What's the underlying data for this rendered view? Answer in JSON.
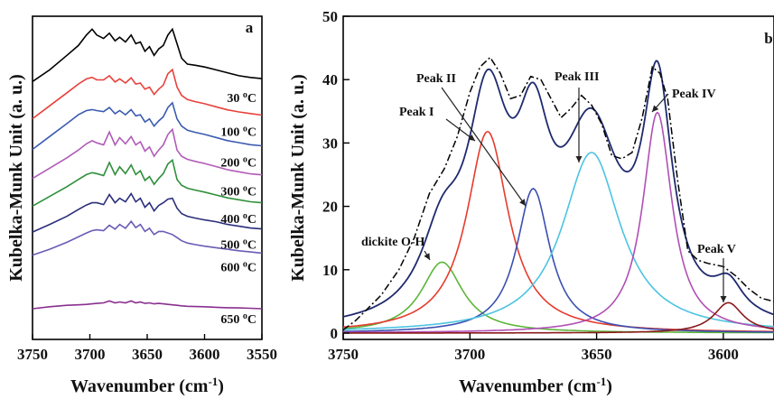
{
  "chart_data": [
    {
      "panel": "a",
      "type": "line",
      "xlabel": "Wavenumber (cm-1)",
      "xlabel_parts": {
        "base": "Wavenumber (cm",
        "sup": "-1",
        "close": ")"
      },
      "ylabel": "Kubelka-Munk Unit (a. u.)",
      "xlim": [
        3750,
        3550
      ],
      "x_ticks": [
        3750,
        3700,
        3650,
        3600,
        3550
      ],
      "y_ticks_shown": false,
      "legend": "none",
      "grid": false,
      "series": [
        {
          "name": "30 °C",
          "temp": "30",
          "unit": "C",
          "color": "#000000",
          "offset": 0.78,
          "amp": 0.18,
          "x": [
            3750,
            3735,
            3720,
            3710,
            3703,
            3698,
            3694,
            3688,
            3683,
            3678,
            3674,
            3669,
            3664,
            3660,
            3656,
            3652,
            3648,
            3644,
            3640,
            3636,
            3632,
            3628,
            3624,
            3620,
            3615,
            3608,
            3600,
            3590,
            3580,
            3570,
            3560,
            3550
          ],
          "y": [
            0.1,
            0.3,
            0.55,
            0.72,
            0.9,
            1.0,
            0.9,
            0.84,
            0.93,
            0.8,
            0.86,
            0.78,
            0.9,
            0.75,
            0.78,
            0.62,
            0.7,
            0.55,
            0.66,
            0.72,
            0.9,
            1.0,
            0.75,
            0.5,
            0.4,
            0.38,
            0.35,
            0.3,
            0.25,
            0.2,
            0.17,
            0.15
          ]
        },
        {
          "name": "100 °C",
          "temp": "100",
          "unit": "C",
          "color": "#e8413b",
          "offset": 0.675,
          "amp": 0.16,
          "x": [
            3750,
            3735,
            3720,
            3710,
            3703,
            3698,
            3694,
            3688,
            3683,
            3678,
            3674,
            3669,
            3664,
            3660,
            3656,
            3652,
            3648,
            3644,
            3640,
            3636,
            3632,
            3628,
            3624,
            3620,
            3615,
            3608,
            3600,
            3590,
            3580,
            3570,
            3560,
            3550
          ],
          "y": [
            0.05,
            0.3,
            0.55,
            0.72,
            0.82,
            0.85,
            0.8,
            0.8,
            0.88,
            0.76,
            0.82,
            0.74,
            0.84,
            0.72,
            0.74,
            0.62,
            0.66,
            0.52,
            0.62,
            0.7,
            0.92,
            1.0,
            0.66,
            0.5,
            0.42,
            0.38,
            0.34,
            0.28,
            0.22,
            0.18,
            0.15,
            0.12
          ]
        },
        {
          "name": "200 °C",
          "temp": "200",
          "unit": "C",
          "color": "#3b5bb0",
          "offset": 0.58,
          "amp": 0.16,
          "x": [
            3750,
            3735,
            3720,
            3710,
            3703,
            3698,
            3694,
            3688,
            3683,
            3678,
            3674,
            3669,
            3664,
            3660,
            3656,
            3652,
            3648,
            3644,
            3640,
            3636,
            3632,
            3628,
            3624,
            3620,
            3615,
            3608,
            3600,
            3590,
            3580,
            3570,
            3560,
            3550
          ],
          "y": [
            0.05,
            0.3,
            0.55,
            0.72,
            0.8,
            0.82,
            0.8,
            0.78,
            0.86,
            0.74,
            0.8,
            0.72,
            0.82,
            0.7,
            0.72,
            0.58,
            0.64,
            0.5,
            0.6,
            0.68,
            0.86,
            0.95,
            0.64,
            0.5,
            0.42,
            0.38,
            0.34,
            0.28,
            0.22,
            0.18,
            0.14,
            0.12
          ]
        },
        {
          "name": "300 °C",
          "temp": "300",
          "unit": "C",
          "color": "#b05bb8",
          "offset": 0.49,
          "amp": 0.16,
          "x": [
            3750,
            3735,
            3720,
            3710,
            3703,
            3698,
            3694,
            3688,
            3683,
            3678,
            3674,
            3669,
            3664,
            3660,
            3656,
            3652,
            3648,
            3644,
            3640,
            3636,
            3632,
            3628,
            3624,
            3620,
            3615,
            3608,
            3600,
            3590,
            3580,
            3570,
            3560,
            3550
          ],
          "y": [
            0.05,
            0.25,
            0.45,
            0.6,
            0.72,
            0.78,
            0.74,
            0.7,
            0.95,
            0.7,
            0.84,
            0.72,
            0.86,
            0.7,
            0.76,
            0.58,
            0.66,
            0.48,
            0.6,
            0.7,
            0.9,
            1.0,
            0.6,
            0.48,
            0.42,
            0.38,
            0.34,
            0.28,
            0.22,
            0.18,
            0.14,
            0.12
          ]
        },
        {
          "name": "400 °C",
          "temp": "400",
          "unit": "C",
          "color": "#2f8f3a",
          "offset": 0.405,
          "amp": 0.15,
          "x": [
            3750,
            3735,
            3720,
            3710,
            3703,
            3698,
            3694,
            3688,
            3683,
            3678,
            3674,
            3669,
            3664,
            3660,
            3656,
            3652,
            3648,
            3644,
            3640,
            3636,
            3632,
            3628,
            3624,
            3620,
            3615,
            3608,
            3600,
            3590,
            3580,
            3570,
            3560,
            3550
          ],
          "y": [
            0.05,
            0.25,
            0.45,
            0.6,
            0.7,
            0.74,
            0.72,
            0.68,
            0.95,
            0.7,
            0.86,
            0.72,
            0.9,
            0.7,
            0.78,
            0.58,
            0.66,
            0.5,
            0.62,
            0.72,
            0.92,
            1.0,
            0.6,
            0.48,
            0.42,
            0.38,
            0.34,
            0.28,
            0.22,
            0.18,
            0.14,
            0.12
          ]
        },
        {
          "name": "500 °C",
          "temp": "500",
          "unit": "C",
          "color": "#2b2e7a",
          "offset": 0.325,
          "amp": 0.14,
          "x": [
            3750,
            3735,
            3720,
            3710,
            3703,
            3698,
            3694,
            3688,
            3683,
            3678,
            3674,
            3669,
            3664,
            3660,
            3656,
            3652,
            3648,
            3644,
            3640,
            3636,
            3632,
            3628,
            3624,
            3620,
            3615,
            3608,
            3600,
            3590,
            3580,
            3570,
            3560,
            3550
          ],
          "y": [
            0.05,
            0.22,
            0.4,
            0.55,
            0.65,
            0.7,
            0.7,
            0.66,
            0.88,
            0.7,
            0.8,
            0.72,
            0.9,
            0.72,
            0.8,
            0.6,
            0.7,
            0.52,
            0.64,
            0.7,
            0.78,
            0.8,
            0.58,
            0.46,
            0.4,
            0.36,
            0.32,
            0.28,
            0.22,
            0.18,
            0.14,
            0.12
          ]
        },
        {
          "name": "600 °C",
          "temp": "600",
          "unit": "C",
          "color": "#6a5bb5",
          "offset": 0.255,
          "amp": 0.12,
          "x": [
            3750,
            3735,
            3720,
            3710,
            3703,
            3698,
            3694,
            3688,
            3683,
            3678,
            3674,
            3669,
            3664,
            3660,
            3656,
            3652,
            3648,
            3644,
            3640,
            3636,
            3632,
            3628,
            3624,
            3620,
            3615,
            3608,
            3600,
            3590,
            3580,
            3570,
            3560,
            3550
          ],
          "y": [
            0.05,
            0.2,
            0.38,
            0.52,
            0.62,
            0.68,
            0.7,
            0.68,
            0.82,
            0.72,
            0.84,
            0.74,
            0.92,
            0.76,
            0.84,
            0.66,
            0.74,
            0.58,
            0.66,
            0.66,
            0.62,
            0.58,
            0.5,
            0.42,
            0.36,
            0.32,
            0.28,
            0.24,
            0.2,
            0.16,
            0.13,
            0.1
          ]
        },
        {
          "name": "650 °C",
          "temp": "650",
          "unit": "C",
          "color": "#8a2f8f",
          "offset": 0.095,
          "amp": 0.03,
          "x": [
            3750,
            3735,
            3720,
            3710,
            3703,
            3698,
            3694,
            3688,
            3683,
            3678,
            3674,
            3669,
            3664,
            3660,
            3656,
            3652,
            3648,
            3644,
            3640,
            3636,
            3632,
            3628,
            3624,
            3620,
            3615,
            3608,
            3600,
            3590,
            3580,
            3570,
            3560,
            3550
          ],
          "y": [
            0.0,
            0.2,
            0.35,
            0.4,
            0.45,
            0.5,
            0.55,
            0.6,
            0.8,
            0.6,
            0.7,
            0.6,
            0.8,
            0.6,
            0.7,
            0.55,
            0.6,
            0.5,
            0.55,
            0.5,
            0.45,
            0.4,
            0.35,
            0.3,
            0.25,
            0.22,
            0.2,
            0.15,
            0.1,
            0.08,
            0.05,
            0.0
          ]
        }
      ]
    },
    {
      "panel": "b",
      "type": "line",
      "xlabel": "Wavenumber (cm-1)",
      "xlabel_parts": {
        "base": "Wavenumber (cm",
        "sup": "-1",
        "close": ")"
      },
      "ylabel": "Kubelka-Munk Unit (a. u.)",
      "xlim": [
        3750,
        3580
      ],
      "ylim": [
        -1,
        50
      ],
      "x_ticks": [
        3750,
        3700,
        3650,
        3600
      ],
      "y_ticks": [
        0,
        10,
        20,
        30,
        40,
        50
      ],
      "legend": "none",
      "grid": false,
      "components": [
        {
          "name": "dickite O-H",
          "center": 3711,
          "height": 11.2,
          "width": 10,
          "color": "#5db53a"
        },
        {
          "name": "Peak I",
          "center": 3693,
          "height": 31.8,
          "width": 10,
          "color": "#e63b2e"
        },
        {
          "name": "Peak II",
          "center": 3675,
          "height": 22.8,
          "width": 8,
          "color": "#3b4fb0"
        },
        {
          "name": "Peak III",
          "center": 3652,
          "height": 28.5,
          "width": 14,
          "color": "#4cc4e0"
        },
        {
          "name": "Peak IV",
          "center": 3626,
          "height": 34.8,
          "width": 7,
          "color": "#b04fb5"
        },
        {
          "name": "Peak V",
          "center": 3598,
          "height": 4.8,
          "width": 7,
          "color": "#8a1a1a"
        }
      ],
      "fit_color": "#1f2a6e",
      "experimental_color": "#000000",
      "experimental": {
        "x": [
          3750,
          3745,
          3740,
          3735,
          3728,
          3722,
          3716,
          3710,
          3705,
          3700,
          3696,
          3692,
          3688,
          3684,
          3680,
          3676,
          3672,
          3668,
          3664,
          3660,
          3656,
          3652,
          3648,
          3644,
          3640,
          3636,
          3632,
          3628,
          3625,
          3622,
          3618,
          3614,
          3610,
          3606,
          3600,
          3595,
          3590,
          3585,
          3580
        ],
        "y": [
          0.5,
          2,
          4,
          6,
          10,
          15,
          22,
          26,
          31,
          38,
          42,
          43.5,
          41,
          37,
          37.5,
          40.5,
          40,
          37,
          34,
          35.5,
          37.5,
          36,
          33,
          28,
          27.5,
          28.5,
          34,
          42,
          41,
          37,
          24,
          13,
          11.5,
          11,
          10.5,
          9,
          7,
          5.5,
          5
        ]
      },
      "annotations": [
        {
          "text": "dickite O-H",
          "target_x": 3708,
          "target_y": 11.2
        },
        {
          "text": "Peak I",
          "target_x": 3697,
          "target_y": 32
        },
        {
          "text": "Peak II",
          "target_x": 3671,
          "target_y": 22.8
        },
        {
          "text": "Peak III",
          "target_x": 3652,
          "target_y": 28.5
        },
        {
          "text": "Peak IV",
          "target_x": 3628,
          "target_y": 35
        },
        {
          "text": "Peak V",
          "target_x": 3598,
          "target_y": 4.8
        }
      ]
    }
  ],
  "panel_a_tag": "a",
  "panel_b_tag": "b"
}
